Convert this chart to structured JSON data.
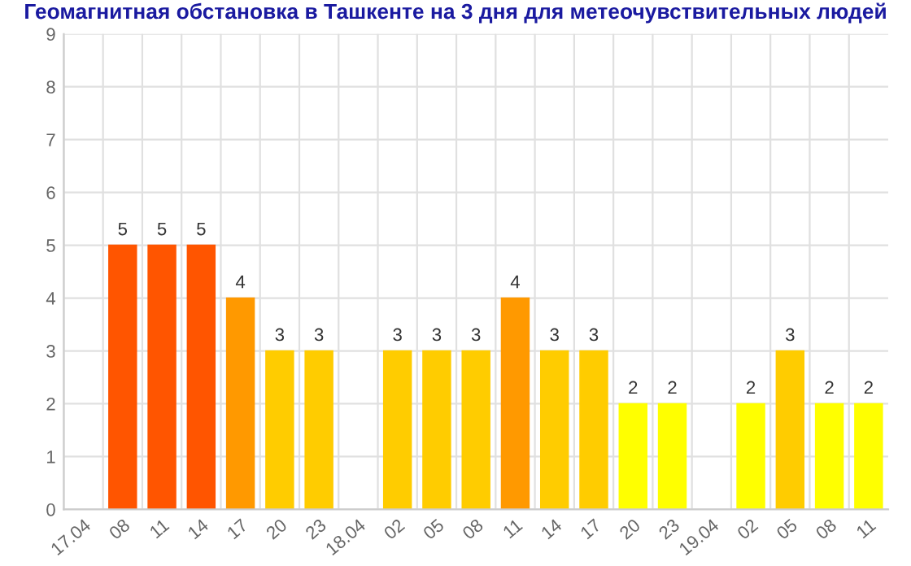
{
  "chart_data": {
    "type": "bar",
    "title": "Геомагнитная обстановка в Ташкенте на 3 дня для метеочувствительных людей",
    "categories": [
      "17.04",
      "08",
      "11",
      "14",
      "17",
      "20",
      "23",
      "18.04",
      "02",
      "05",
      "08",
      "11",
      "14",
      "17",
      "20",
      "23",
      "19.04",
      "02",
      "05",
      "08",
      "11"
    ],
    "values": [
      null,
      5,
      5,
      5,
      4,
      3,
      3,
      null,
      3,
      3,
      3,
      4,
      3,
      3,
      2,
      2,
      null,
      2,
      3,
      2,
      2
    ],
    "colors": [
      null,
      "#ff5500",
      "#ff5500",
      "#ff5500",
      "#ff9900",
      "#ffcc00",
      "#ffcc00",
      null,
      "#ffcc00",
      "#ffcc00",
      "#ffcc00",
      "#ff9900",
      "#ffcc00",
      "#ffcc00",
      "#ffff00",
      "#ffff00",
      null,
      "#ffff00",
      "#ffcc00",
      "#ffff00",
      "#ffff00"
    ],
    "ylim": [
      0,
      9
    ],
    "yticks": [
      0,
      1,
      2,
      3,
      4,
      5,
      6,
      7,
      8,
      9
    ],
    "grid": true,
    "data_labels": true
  }
}
